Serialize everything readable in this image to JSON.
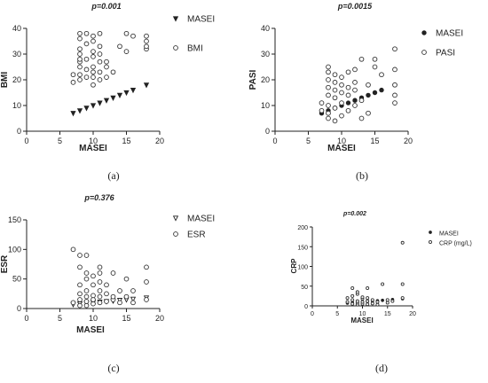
{
  "chart_data": [
    {
      "id": "a",
      "type": "scatter",
      "title": "p=0.001",
      "caption": "(a)",
      "xlabel": "MASEI",
      "ylabel": "BMI",
      "xlim": [
        0,
        20
      ],
      "ylim": [
        0,
        40
      ],
      "xticks": [
        0,
        5,
        10,
        15,
        20
      ],
      "yticks": [
        0,
        10,
        20,
        30,
        40
      ],
      "legend_position": "top-right",
      "series": [
        {
          "name": "MASEI",
          "marker": "triangle-down",
          "points": [
            [
              7,
              7
            ],
            [
              8,
              8
            ],
            [
              9,
              9
            ],
            [
              10,
              10
            ],
            [
              11,
              11
            ],
            [
              12,
              12
            ],
            [
              13,
              13
            ],
            [
              14,
              14
            ],
            [
              15,
              15
            ],
            [
              16,
              16
            ],
            [
              18,
              18
            ]
          ]
        },
        {
          "name": "BMI",
          "marker": "circle-open",
          "points": [
            [
              7,
              19
            ],
            [
              7,
              22
            ],
            [
              8,
              20
            ],
            [
              8,
              22
            ],
            [
              8,
              25
            ],
            [
              8,
              27
            ],
            [
              8,
              28
            ],
            [
              8,
              30
            ],
            [
              8,
              32
            ],
            [
              8,
              36
            ],
            [
              8,
              38
            ],
            [
              9,
              21
            ],
            [
              9,
              24
            ],
            [
              9,
              28
            ],
            [
              9,
              34
            ],
            [
              9,
              38
            ],
            [
              10,
              18
            ],
            [
              10,
              21
            ],
            [
              10,
              23
            ],
            [
              10,
              25
            ],
            [
              10,
              29
            ],
            [
              10,
              31
            ],
            [
              10,
              35
            ],
            [
              10,
              37
            ],
            [
              11,
              20
            ],
            [
              11,
              23
            ],
            [
              11,
              27
            ],
            [
              11,
              30
            ],
            [
              11,
              33
            ],
            [
              11,
              38
            ],
            [
              12,
              21
            ],
            [
              12,
              25
            ],
            [
              12,
              27
            ],
            [
              13,
              23
            ],
            [
              14,
              33
            ],
            [
              15,
              31
            ],
            [
              15,
              38
            ],
            [
              16,
              37
            ],
            [
              18,
              32
            ],
            [
              18,
              33
            ],
            [
              18,
              35
            ],
            [
              18,
              37
            ]
          ]
        }
      ]
    },
    {
      "id": "b",
      "type": "scatter",
      "title": "p=0.0015",
      "caption": "(b)",
      "xlabel": "MASEI",
      "ylabel": "PASI",
      "xlim": [
        0,
        20
      ],
      "ylim": [
        0,
        40
      ],
      "xticks": [
        0,
        5,
        10,
        15,
        20
      ],
      "yticks": [
        0,
        10,
        20,
        30,
        40
      ],
      "legend_position": "top-right",
      "series": [
        {
          "name": "MASEI",
          "marker": "circle-filled",
          "points": [
            [
              7,
              7
            ],
            [
              8,
              8
            ],
            [
              9,
              9
            ],
            [
              10,
              10
            ],
            [
              11,
              11
            ],
            [
              12,
              12
            ],
            [
              13,
              13
            ],
            [
              14,
              14
            ],
            [
              15,
              15
            ],
            [
              16,
              16
            ],
            [
              18,
              18
            ]
          ]
        },
        {
          "name": "PASI",
          "marker": "circle-open",
          "points": [
            [
              7,
              8
            ],
            [
              7,
              11
            ],
            [
              8,
              5
            ],
            [
              8,
              7
            ],
            [
              8,
              10
            ],
            [
              8,
              14
            ],
            [
              8,
              17
            ],
            [
              8,
              20
            ],
            [
              8,
              23
            ],
            [
              8,
              25
            ],
            [
              9,
              4
            ],
            [
              9,
              9
            ],
            [
              9,
              13
            ],
            [
              9,
              16
            ],
            [
              9,
              19
            ],
            [
              9,
              22
            ],
            [
              10,
              6
            ],
            [
              10,
              11
            ],
            [
              10,
              15
            ],
            [
              10,
              18
            ],
            [
              10,
              21
            ],
            [
              11,
              8
            ],
            [
              11,
              14
            ],
            [
              11,
              17
            ],
            [
              11,
              23
            ],
            [
              12,
              10
            ],
            [
              12,
              16
            ],
            [
              12,
              19
            ],
            [
              12,
              24
            ],
            [
              13,
              5
            ],
            [
              13,
              12
            ],
            [
              13,
              28
            ],
            [
              14,
              7
            ],
            [
              14,
              18
            ],
            [
              15,
              25
            ],
            [
              15,
              28
            ],
            [
              16,
              22
            ],
            [
              18,
              11
            ],
            [
              18,
              14
            ],
            [
              18,
              18
            ],
            [
              18,
              24
            ],
            [
              18,
              32
            ]
          ]
        }
      ]
    },
    {
      "id": "c",
      "type": "scatter",
      "title": "p=0.376",
      "caption": "(c)",
      "xlabel": "MASEI",
      "ylabel": "ESR",
      "xlim": [
        0,
        20
      ],
      "ylim": [
        0,
        150
      ],
      "xticks": [
        0,
        5,
        10,
        15,
        20
      ],
      "yticks": [
        0,
        50,
        100,
        150
      ],
      "legend_position": "top-right",
      "series": [
        {
          "name": "MASEI",
          "marker": "triangle-down-open",
          "points": [
            [
              7,
              7
            ],
            [
              8,
              8
            ],
            [
              9,
              9
            ],
            [
              10,
              10
            ],
            [
              11,
              11
            ],
            [
              12,
              12
            ],
            [
              13,
              13
            ],
            [
              14,
              14
            ],
            [
              15,
              15
            ],
            [
              16,
              16
            ],
            [
              18,
              18
            ]
          ]
        },
        {
          "name": "ESR",
          "marker": "circle-open",
          "points": [
            [
              7,
              100
            ],
            [
              7,
              10
            ],
            [
              8,
              90
            ],
            [
              8,
              70
            ],
            [
              8,
              5
            ],
            [
              8,
              15
            ],
            [
              8,
              25
            ],
            [
              8,
              40
            ],
            [
              9,
              5
            ],
            [
              9,
              12
            ],
            [
              9,
              20
            ],
            [
              9,
              30
            ],
            [
              9,
              50
            ],
            [
              9,
              60
            ],
            [
              9,
              90
            ],
            [
              10,
              8
            ],
            [
              10,
              15
            ],
            [
              10,
              22
            ],
            [
              10,
              40
            ],
            [
              10,
              55
            ],
            [
              11,
              10
            ],
            [
              11,
              20
            ],
            [
              11,
              30
            ],
            [
              11,
              45
            ],
            [
              11,
              60
            ],
            [
              11,
              70
            ],
            [
              12,
              12
            ],
            [
              12,
              25
            ],
            [
              12,
              40
            ],
            [
              13,
              15
            ],
            [
              13,
              20
            ],
            [
              13,
              60
            ],
            [
              14,
              10
            ],
            [
              14,
              30
            ],
            [
              15,
              20
            ],
            [
              15,
              50
            ],
            [
              16,
              10
            ],
            [
              16,
              30
            ],
            [
              18,
              15
            ],
            [
              18,
              45
            ],
            [
              18,
              70
            ]
          ]
        }
      ]
    },
    {
      "id": "d",
      "type": "scatter",
      "title": "p=0.002",
      "caption": "(d)",
      "xlabel": "MASEI",
      "ylabel": "CRP",
      "xlim": [
        0,
        20
      ],
      "ylim": [
        0,
        200
      ],
      "xticks": [
        0,
        5,
        10,
        15,
        20
      ],
      "yticks": [
        0,
        50,
        100,
        150,
        200
      ],
      "legend_position": "top-right",
      "series": [
        {
          "name": "MASEI",
          "marker": "dot-filled",
          "points": [
            [
              7,
              7
            ],
            [
              8,
              8
            ],
            [
              9,
              9
            ],
            [
              10,
              10
            ],
            [
              11,
              11
            ],
            [
              12,
              12
            ],
            [
              13,
              13
            ],
            [
              14,
              14
            ],
            [
              15,
              15
            ],
            [
              16,
              16
            ],
            [
              18,
              18
            ]
          ]
        },
        {
          "name": "CRP (mg/L)",
          "marker": "dot-open",
          "points": [
            [
              7,
              10
            ],
            [
              7,
              20
            ],
            [
              8,
              5
            ],
            [
              8,
              15
            ],
            [
              8,
              25
            ],
            [
              8,
              45
            ],
            [
              9,
              3
            ],
            [
              9,
              8
            ],
            [
              9,
              12
            ],
            [
              9,
              30
            ],
            [
              9,
              35
            ],
            [
              10,
              5
            ],
            [
              10,
              10
            ],
            [
              10,
              18
            ],
            [
              10,
              22
            ],
            [
              11,
              4
            ],
            [
              11,
              12
            ],
            [
              11,
              20
            ],
            [
              11,
              45
            ],
            [
              12,
              6
            ],
            [
              12,
              15
            ],
            [
              13,
              3
            ],
            [
              13,
              10
            ],
            [
              14,
              55
            ],
            [
              15,
              8
            ],
            [
              15,
              15
            ],
            [
              16,
              12
            ],
            [
              18,
              160
            ],
            [
              18,
              55
            ],
            [
              18,
              20
            ]
          ]
        }
      ]
    }
  ]
}
